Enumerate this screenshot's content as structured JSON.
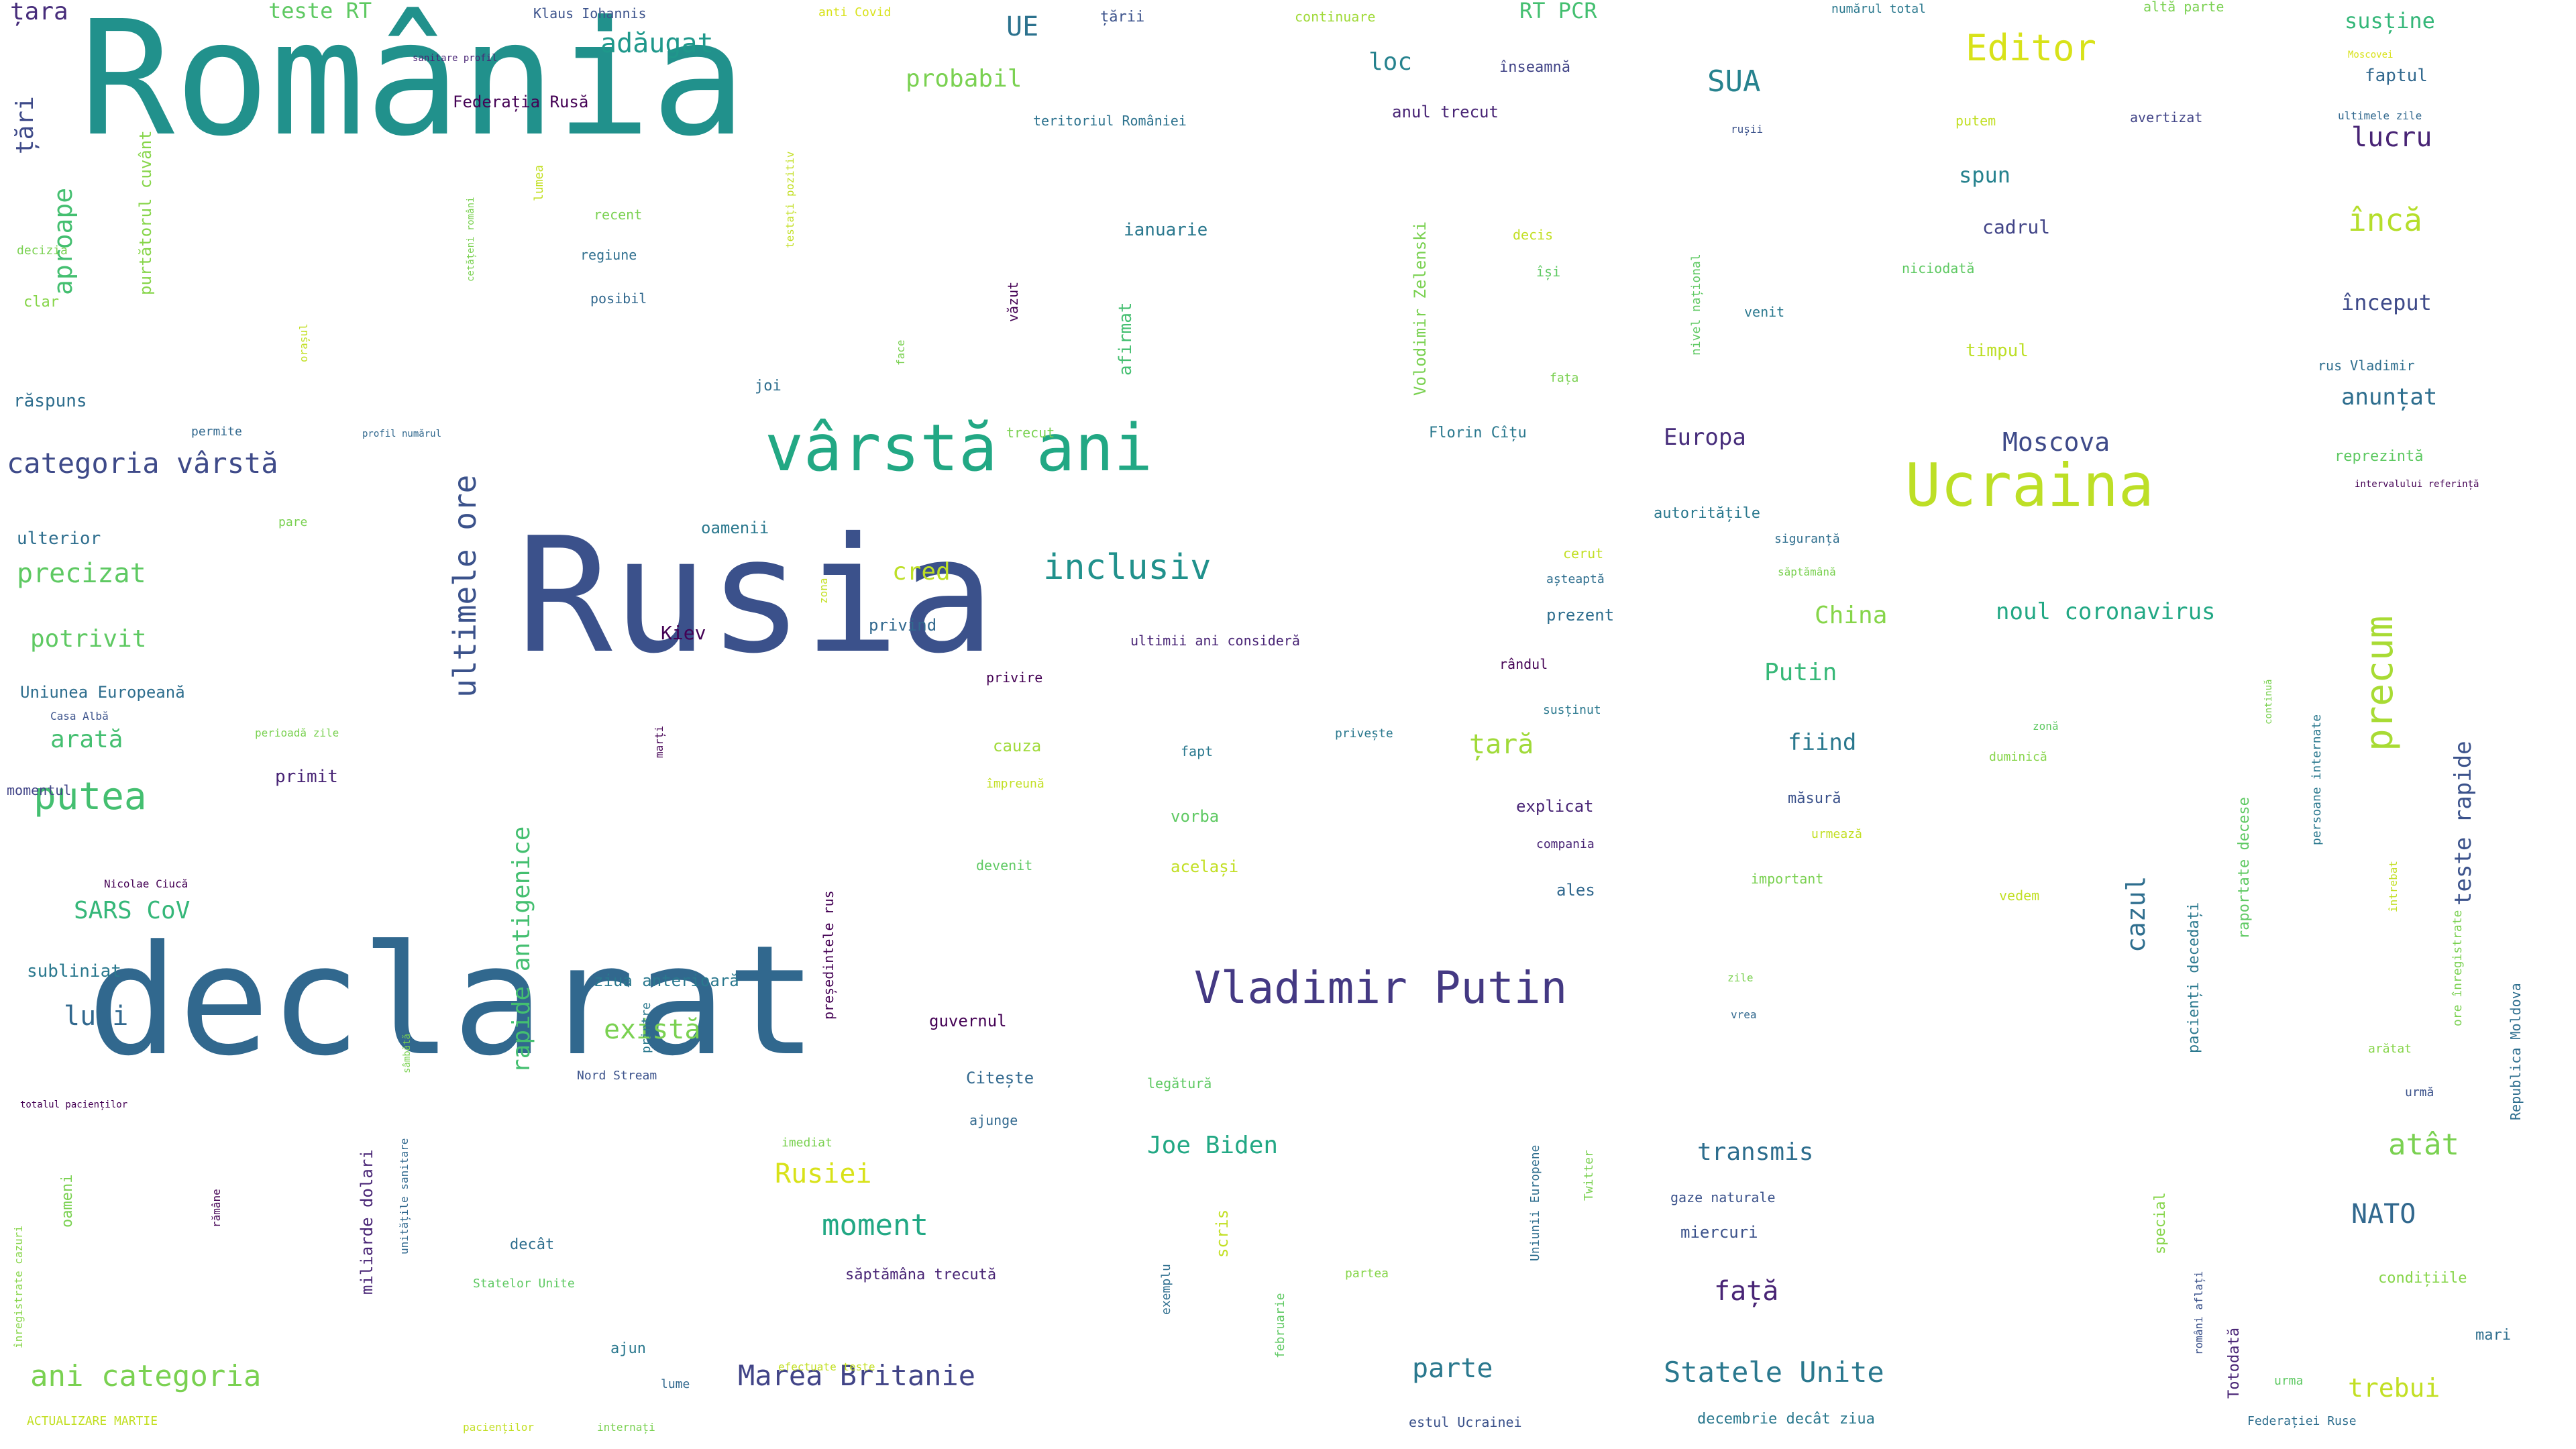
{
  "title": "",
  "colors": {
    "background": "#ffffff",
    "palette": [
      "#440154",
      "#482475",
      "#414487",
      "#355f8d",
      "#2a788e",
      "#21918c",
      "#22a884",
      "#44bf70",
      "#7ad151",
      "#bddf26",
      "#fde725"
    ]
  },
  "words": [
    {
      "text": "România",
      "size": 236,
      "color": "#21918c"
    },
    {
      "text": "Rusia",
      "size": 237,
      "color": "#3b518b"
    },
    {
      "text": "declarat",
      "size": 226,
      "color": "#31688e"
    },
    {
      "text": "vârstă ani",
      "size": 96,
      "color": "#22a884"
    },
    {
      "text": "Ucraina",
      "size": 88,
      "color": "#bddf26"
    },
    {
      "text": "Editor",
      "size": 54,
      "color": "#d8e219"
    },
    {
      "text": "Vladimir Putin",
      "size": 66,
      "color": "#443983"
    },
    {
      "text": "inclusiv",
      "size": 52,
      "color": "#21918c"
    },
    {
      "text": "categoria vârstă",
      "size": 42,
      "color": "#3e4a89"
    },
    {
      "text": "precum",
      "size": 56,
      "color": "#a8db34"
    },
    {
      "text": "putea",
      "size": 56,
      "color": "#44bf70"
    },
    {
      "text": "Marea Britanie",
      "size": 42,
      "color": "#414487"
    },
    {
      "text": "ani categoria",
      "size": 44,
      "color": "#7ad151"
    },
    {
      "text": "Statele Unite",
      "size": 42,
      "color": "#2a788e"
    },
    {
      "text": "ultimele ore",
      "size": 46,
      "color": "#3b528b"
    },
    {
      "text": "moment",
      "size": 44,
      "color": "#22a884"
    },
    {
      "text": "Rusiei",
      "size": 40,
      "color": "#d8e219"
    },
    {
      "text": "există",
      "size": 40,
      "color": "#7ad151"
    },
    {
      "text": "precizat",
      "size": 40,
      "color": "#5ec962"
    },
    {
      "text": "potrivit",
      "size": 36,
      "color": "#5ec962"
    },
    {
      "text": "arată",
      "size": 36,
      "color": "#44bf70"
    },
    {
      "text": "SARS CoV",
      "size": 36,
      "color": "#35b779"
    },
    {
      "text": "luni",
      "size": 40,
      "color": "#31688e"
    },
    {
      "text": "Moscova",
      "size": 38,
      "color": "#3e4a89"
    },
    {
      "text": "Europa",
      "size": 34,
      "color": "#472d7b"
    },
    {
      "text": "China",
      "size": 36,
      "color": "#86d549"
    },
    {
      "text": "Putin",
      "size": 36,
      "color": "#37b878"
    },
    {
      "text": "fiind",
      "size": 34,
      "color": "#2a788e"
    },
    {
      "text": "țară",
      "size": 40,
      "color": "#a0da39"
    },
    {
      "text": "cred",
      "size": 36,
      "color": "#bddf26"
    },
    {
      "text": "UE",
      "size": 40,
      "color": "#2c728e"
    },
    {
      "text": "SUA",
      "size": 44,
      "color": "#26828e"
    },
    {
      "text": "adăugat",
      "size": 40,
      "color": "#1f988b"
    },
    {
      "text": "probabil",
      "size": 36,
      "color": "#7ad151"
    },
    {
      "text": "loc",
      "size": 36,
      "color": "#26828e"
    },
    {
      "text": "lucru",
      "size": 40,
      "color": "#482475"
    },
    {
      "text": "încă",
      "size": 46,
      "color": "#b5de2b"
    },
    {
      "text": "început",
      "size": 32,
      "color": "#3e4a89"
    },
    {
      "text": "anunțat",
      "size": 34,
      "color": "#2e6e8e"
    },
    {
      "text": "spun",
      "size": 32,
      "color": "#26828e"
    },
    {
      "text": "cadrul",
      "size": 28,
      "color": "#414487"
    },
    {
      "text": "timpul",
      "size": 26,
      "color": "#bddf26"
    },
    {
      "text": "teste RT",
      "size": 32,
      "color": "#5ec962"
    },
    {
      "text": "RT PCR",
      "size": 32,
      "color": "#44bf70"
    },
    {
      "text": "ianuarie",
      "size": 26,
      "color": "#2a788e"
    },
    {
      "text": "anul trecut",
      "size": 24,
      "color": "#482475"
    },
    {
      "text": "Federația Rusă",
      "size": 24,
      "color": "#440154"
    },
    {
      "text": "teritoriul României",
      "size": 20,
      "color": "#2c728e"
    },
    {
      "text": "susține",
      "size": 32,
      "color": "#35b779"
    },
    {
      "text": "faptul",
      "size": 26,
      "color": "#31688e"
    },
    {
      "text": "țara",
      "size": 36,
      "color": "#472d7b"
    },
    {
      "text": "țări",
      "size": 36,
      "color": "#3e4a89"
    },
    {
      "text": "aproape",
      "size": 38,
      "color": "#44bf70"
    },
    {
      "text": "purtătorul cuvânt",
      "size": 24,
      "color": "#86d549"
    },
    {
      "text": "Klaus Iohannis",
      "size": 20,
      "color": "#3b528b"
    },
    {
      "text": "anti Covid",
      "size": 18,
      "color": "#d8e219"
    },
    {
      "text": "țării",
      "size": 22,
      "color": "#3b528b"
    },
    {
      "text": "continuare",
      "size": 20,
      "color": "#a0da39"
    },
    {
      "text": "numărul total",
      "size": 18,
      "color": "#2a788e"
    },
    {
      "text": "altă parte",
      "size": 20,
      "color": "#7ad151"
    },
    {
      "text": "Moscovei",
      "size": 14,
      "color": "#d8e219"
    },
    {
      "text": "ultimele zile",
      "size": 16,
      "color": "#31688e"
    },
    {
      "text": "înseamnă",
      "size": 22,
      "color": "#414487"
    },
    {
      "text": "putem",
      "size": 20,
      "color": "#c2df23"
    },
    {
      "text": "avertizat",
      "size": 20,
      "color": "#414487"
    },
    {
      "text": "rușii",
      "size": 16,
      "color": "#3b528b"
    },
    {
      "text": "sanitare profil",
      "size": 14,
      "color": "#482475"
    },
    {
      "text": "cetățeni români",
      "size": 14,
      "color": "#7ad151"
    },
    {
      "text": "lumea",
      "size": 18,
      "color": "#c2df23"
    },
    {
      "text": "recent",
      "size": 20,
      "color": "#7ad151"
    },
    {
      "text": "regiune",
      "size": 20,
      "color": "#2e6e8e"
    },
    {
      "text": "posibil",
      "size": 20,
      "color": "#31688e"
    },
    {
      "text": "testați pozitiv",
      "size": 16,
      "color": "#c2df23"
    },
    {
      "text": "decizia",
      "size": 18,
      "color": "#7ad151"
    },
    {
      "text": "clar",
      "size": 22,
      "color": "#86d549"
    },
    {
      "text": "orașul",
      "size": 16,
      "color": "#c2df23"
    },
    {
      "text": "răspuns",
      "size": 26,
      "color": "#2e6e8e"
    },
    {
      "text": "permite",
      "size": 18,
      "color": "#31688e"
    },
    {
      "text": "profil numărul",
      "size": 14,
      "color": "#31688e"
    },
    {
      "text": "pare",
      "size": 18,
      "color": "#7ad151"
    },
    {
      "text": "ulterior",
      "size": 26,
      "color": "#2e6e8e"
    },
    {
      "text": "Uniunea Europeană",
      "size": 24,
      "color": "#2e6e8e"
    },
    {
      "text": "Casa Albă",
      "size": 16,
      "color": "#3b528b"
    },
    {
      "text": "momentul",
      "size": 20,
      "color": "#414487"
    },
    {
      "text": "perioadă zile",
      "size": 16,
      "color": "#7ad151"
    },
    {
      "text": "primit",
      "size": 26,
      "color": "#482475"
    },
    {
      "text": "marți",
      "size": 16,
      "color": "#440154"
    },
    {
      "text": "Nicolae Ciucă",
      "size": 16,
      "color": "#440154"
    },
    {
      "text": "subliniat",
      "size": 26,
      "color": "#2a788e"
    },
    {
      "text": "totalul pacienților",
      "size": 14,
      "color": "#440154"
    },
    {
      "text": "sâmbătă",
      "size": 14,
      "color": "#7ad151"
    },
    {
      "text": "unitățile sanitare",
      "size": 16,
      "color": "#31688e"
    },
    {
      "text": "miliarde dolari",
      "size": 24,
      "color": "#482475"
    },
    {
      "text": "oameni",
      "size": 22,
      "color": "#7ad151"
    },
    {
      "text": "înregistrate cazuri",
      "size": 16,
      "color": "#86d549"
    },
    {
      "text": "ACTUALIZARE MARTIE",
      "size": 18,
      "color": "#c2df23"
    },
    {
      "text": "pacienților",
      "size": 16,
      "color": "#c2df23"
    },
    {
      "text": "internați",
      "size": 16,
      "color": "#7ad151"
    },
    {
      "text": "rămâne",
      "size": 16,
      "color": "#440154"
    },
    {
      "text": "Nord Stream",
      "size": 18,
      "color": "#3b528b"
    },
    {
      "text": "joi",
      "size": 22,
      "color": "#2e6e8e"
    },
    {
      "text": "face",
      "size": 16,
      "color": "#7ad151"
    },
    {
      "text": "văzut",
      "size": 20,
      "color": "#440154"
    },
    {
      "text": "afirmat",
      "size": 26,
      "color": "#44bf70"
    },
    {
      "text": "trecut",
      "size": 20,
      "color": "#7ad151"
    },
    {
      "text": "Volodimir Zelenski",
      "size": 24,
      "color": "#7ad151"
    },
    {
      "text": "decis",
      "size": 20,
      "color": "#c2df23"
    },
    {
      "text": "își",
      "size": 20,
      "color": "#5ec962"
    },
    {
      "text": "fața",
      "size": 18,
      "color": "#7ad151"
    },
    {
      "text": "Florin Cîțu",
      "size": 22,
      "color": "#2a788e"
    },
    {
      "text": "nivel național",
      "size": 18,
      "color": "#5ec962"
    },
    {
      "text": "venit",
      "size": 20,
      "color": "#2a788e"
    },
    {
      "text": "niciodată",
      "size": 20,
      "color": "#5ec962"
    },
    {
      "text": "rus Vladimir",
      "size": 20,
      "color": "#2e6e8e"
    },
    {
      "text": "reprezintă",
      "size": 22,
      "color": "#5ec962"
    },
    {
      "text": "intervalului referință",
      "size": 14,
      "color": "#440154"
    },
    {
      "text": "autoritățile",
      "size": 22,
      "color": "#2a788e"
    },
    {
      "text": "siguranță",
      "size": 18,
      "color": "#2e6e8e"
    },
    {
      "text": "săptămână",
      "size": 16,
      "color": "#7ad151"
    },
    {
      "text": "cerut",
      "size": 20,
      "color": "#c2df23"
    },
    {
      "text": "așteaptă",
      "size": 18,
      "color": "#2e6e8e"
    },
    {
      "text": "oamenii",
      "size": 24,
      "color": "#2a788e"
    },
    {
      "text": "zona",
      "size": 16,
      "color": "#c2df23"
    },
    {
      "text": "privind",
      "size": 24,
      "color": "#31688e"
    },
    {
      "text": "Kiev",
      "size": 28,
      "color": "#440154"
    },
    {
      "text": "ultimii ani consideră",
      "size": 20,
      "color": "#482475"
    },
    {
      "text": "prezent",
      "size": 24,
      "color": "#2e6e8e"
    },
    {
      "text": "rândul",
      "size": 20,
      "color": "#440154"
    },
    {
      "text": "noul coronavirus",
      "size": 34,
      "color": "#22a884"
    },
    {
      "text": "privire",
      "size": 20,
      "color": "#440154"
    },
    {
      "text": "fapt",
      "size": 20,
      "color": "#2a788e"
    },
    {
      "text": "privește",
      "size": 18,
      "color": "#2a788e"
    },
    {
      "text": "susținut",
      "size": 18,
      "color": "#2a788e"
    },
    {
      "text": "zonă",
      "size": 16,
      "color": "#5ec962"
    },
    {
      "text": "duminică",
      "size": 18,
      "color": "#86d549"
    },
    {
      "text": "cauza",
      "size": 24,
      "color": "#a0da39"
    },
    {
      "text": "împreună",
      "size": 18,
      "color": "#c2df23"
    },
    {
      "text": "vorba",
      "size": 24,
      "color": "#5ec962"
    },
    {
      "text": "explicat",
      "size": 24,
      "color": "#482475"
    },
    {
      "text": "măsură",
      "size": 22,
      "color": "#3b528b"
    },
    {
      "text": "compania",
      "size": 18,
      "color": "#482475"
    },
    {
      "text": "devenit",
      "size": 20,
      "color": "#5ec962"
    },
    {
      "text": "același",
      "size": 24,
      "color": "#c2df23"
    },
    {
      "text": "ales",
      "size": 24,
      "color": "#31688e"
    },
    {
      "text": "urmează",
      "size": 18,
      "color": "#c2df23"
    },
    {
      "text": "important",
      "size": 20,
      "color": "#7ad151"
    },
    {
      "text": "vedem",
      "size": 20,
      "color": "#c2df23"
    },
    {
      "text": "ziua anterioară",
      "size": 24,
      "color": "#2a788e"
    },
    {
      "text": "guvernul",
      "size": 24,
      "color": "#440154"
    },
    {
      "text": "Citește",
      "size": 24,
      "color": "#31688e"
    },
    {
      "text": "ajunge",
      "size": 20,
      "color": "#31688e"
    },
    {
      "text": "legătură",
      "size": 20,
      "color": "#5ec962"
    },
    {
      "text": "zile",
      "size": 16,
      "color": "#7ad151"
    },
    {
      "text": "vrea",
      "size": 16,
      "color": "#31688e"
    },
    {
      "text": "Joe Biden",
      "size": 36,
      "color": "#22a884"
    },
    {
      "text": "transmis",
      "size": 36,
      "color": "#2e6e8e"
    },
    {
      "text": "gaze naturale",
      "size": 20,
      "color": "#3b528b"
    },
    {
      "text": "miercuri",
      "size": 24,
      "color": "#3b528b"
    },
    {
      "text": "față",
      "size": 40,
      "color": "#482475"
    },
    {
      "text": "atât",
      "size": 44,
      "color": "#7ad151"
    },
    {
      "text": "NATO",
      "size": 40,
      "color": "#31688e"
    },
    {
      "text": "condițiile",
      "size": 22,
      "color": "#86d549"
    },
    {
      "text": "parte",
      "size": 40,
      "color": "#2a788e"
    },
    {
      "text": "trebui",
      "size": 38,
      "color": "#c2df23"
    },
    {
      "text": "mari",
      "size": 22,
      "color": "#2e6e8e"
    },
    {
      "text": "decât",
      "size": 22,
      "color": "#2e6e8e"
    },
    {
      "text": "Statelor Unite",
      "size": 18,
      "color": "#5ec962"
    },
    {
      "text": "săptămâna trecută",
      "size": 22,
      "color": "#482475"
    },
    {
      "text": "ajun",
      "size": 22,
      "color": "#2a788e"
    },
    {
      "text": "lume",
      "size": 18,
      "color": "#31688e"
    },
    {
      "text": "efectuate teste",
      "size": 16,
      "color": "#c2df23"
    },
    {
      "text": "exemplu",
      "size": 18,
      "color": "#2e6e8e"
    },
    {
      "text": "scris",
      "size": 24,
      "color": "#c2df23"
    },
    {
      "text": "februarie",
      "size": 18,
      "color": "#5ec962"
    },
    {
      "text": "partea",
      "size": 18,
      "color": "#86d549"
    },
    {
      "text": "imediat",
      "size": 18,
      "color": "#7ad151"
    },
    {
      "text": "Uniunii Europene",
      "size": 18,
      "color": "#2e6e8e"
    },
    {
      "text": "Twitter",
      "size": 18,
      "color": "#7ad151"
    },
    {
      "text": "estul Ucrainei",
      "size": 20,
      "color": "#3b528b"
    },
    {
      "text": "decembrie decât ziua",
      "size": 22,
      "color": "#2a788e"
    },
    {
      "text": "Federației Ruse",
      "size": 18,
      "color": "#2e6e8e"
    },
    {
      "text": "urma",
      "size": 18,
      "color": "#5ec962"
    },
    {
      "text": "Totodată",
      "size": 22,
      "color": "#482475"
    },
    {
      "text": "români aflați",
      "size": 16,
      "color": "#3b528b"
    },
    {
      "text": "special",
      "size": 22,
      "color": "#86d549"
    },
    {
      "text": "arătat",
      "size": 18,
      "color": "#86d549"
    },
    {
      "text": "urmă",
      "size": 18,
      "color": "#3b528b"
    },
    {
      "text": "cazul",
      "size": 38,
      "color": "#2e6e8e"
    },
    {
      "text": "pacienți decedați",
      "size": 22,
      "color": "#2a788e"
    },
    {
      "text": "raportate decese",
      "size": 22,
      "color": "#5ec962"
    },
    {
      "text": "persoane internate",
      "size": 18,
      "color": "#2a788e"
    },
    {
      "text": "continuă",
      "size": 14,
      "color": "#7ad151"
    },
    {
      "text": "teste rapide",
      "size": 34,
      "color": "#3b528b"
    },
    {
      "text": "ore înregistrate",
      "size": 18,
      "color": "#7ad151"
    },
    {
      "text": "Republica Moldova",
      "size": 20,
      "color": "#2e6e8e"
    },
    {
      "text": "întrebat",
      "size": 16,
      "color": "#c2df23"
    },
    {
      "text": "președintele rus",
      "size": 20,
      "color": "#440154"
    },
    {
      "text": "printre",
      "size": 18,
      "color": "#2a788e"
    },
    {
      "text": "rapide antigenice",
      "size": 36,
      "color": "#44bf70"
    }
  ]
}
